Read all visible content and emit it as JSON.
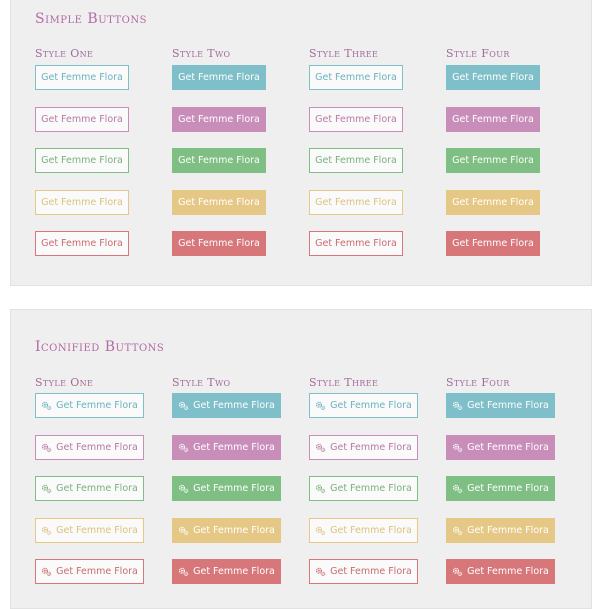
{
  "palette": {
    "blue": {
      "main": "#7ebfc9",
      "text_outline": "#6ab3be"
    },
    "purple": {
      "main": "#c98db9",
      "text_outline": "#b978a7"
    },
    "green": {
      "main": "#7fbf83",
      "text_outline": "#79b27d"
    },
    "yellow": {
      "main": "#e5c886",
      "text_outline": "#dcc27c"
    },
    "red": {
      "main": "#d77779",
      "text_outline": "#c96c6f"
    }
  },
  "simple": {
    "title": "Simple Buttons",
    "columns": [
      {
        "title": "Style One",
        "buttons": [
          {
            "label": "Get Femme Flora"
          },
          {
            "label": "Get Femme Flora"
          },
          {
            "label": "Get Femme Flora"
          },
          {
            "label": "Get Femme Flora"
          },
          {
            "label": "Get Femme Flora"
          }
        ]
      },
      {
        "title": "Style Two",
        "buttons": [
          {
            "label": "Get Femme Flora"
          },
          {
            "label": "Get Femme Flora"
          },
          {
            "label": "Get Femme Flora"
          },
          {
            "label": "Get Femme Flora"
          },
          {
            "label": "Get Femme Flora"
          }
        ]
      },
      {
        "title": "Style Three",
        "buttons": [
          {
            "label": "Get Femme Flora"
          },
          {
            "label": "Get Femme Flora"
          },
          {
            "label": "Get Femme Flora"
          },
          {
            "label": "Get Femme Flora"
          },
          {
            "label": "Get Femme Flora"
          }
        ]
      },
      {
        "title": "Style Four",
        "buttons": [
          {
            "label": "Get Femme Flora"
          },
          {
            "label": "Get Femme Flora"
          },
          {
            "label": "Get Femme Flora"
          },
          {
            "label": "Get Femme Flora"
          },
          {
            "label": "Get Femme Flora"
          }
        ]
      }
    ]
  },
  "iconified": {
    "title": "Iconified Buttons",
    "icon": "gears-icon",
    "columns": [
      {
        "title": "Style One",
        "buttons": [
          {
            "label": "Get Femme Flora"
          },
          {
            "label": "Get Femme Flora"
          },
          {
            "label": "Get Femme Flora"
          },
          {
            "label": "Get Femme Flora"
          },
          {
            "label": "Get Femme Flora"
          }
        ]
      },
      {
        "title": "Style Two",
        "buttons": [
          {
            "label": "Get Femme Flora"
          },
          {
            "label": "Get Femme Flora"
          },
          {
            "label": "Get Femme Flora"
          },
          {
            "label": "Get Femme Flora"
          },
          {
            "label": "Get Femme Flora"
          }
        ]
      },
      {
        "title": "Style Three",
        "buttons": [
          {
            "label": "Get Femme Flora"
          },
          {
            "label": "Get Femme Flora"
          },
          {
            "label": "Get Femme Flora"
          },
          {
            "label": "Get Femme Flora"
          },
          {
            "label": "Get Femme Flora"
          }
        ]
      },
      {
        "title": "Style Four",
        "buttons": [
          {
            "label": "Get Femme Flora"
          },
          {
            "label": "Get Femme Flora"
          },
          {
            "label": "Get Femme Flora"
          },
          {
            "label": "Get Femme Flora"
          },
          {
            "label": "Get Femme Flora"
          }
        ]
      }
    ]
  }
}
